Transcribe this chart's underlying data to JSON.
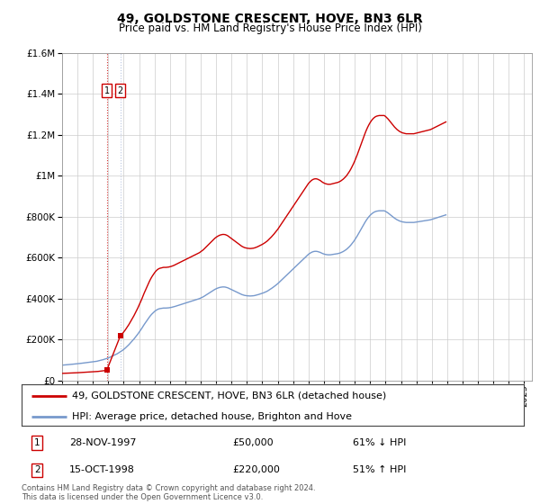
{
  "title": "49, GOLDSTONE CRESCENT, HOVE, BN3 6LR",
  "subtitle": "Price paid vs. HM Land Registry's House Price Index (HPI)",
  "transaction1_date": 1997.9,
  "transaction1_price": 50000,
  "transaction2_date": 1998.79,
  "transaction2_price": 220000,
  "property_line_color": "#cc0000",
  "hpi_line_color": "#7799cc",
  "vline1_color": "#cc0000",
  "vline2_color": "#aabbdd",
  "legend_property_label": "49, GOLDSTONE CRESCENT, HOVE, BN3 6LR (detached house)",
  "legend_hpi_label": "HPI: Average price, detached house, Brighton and Hove",
  "transaction1_text": "28-NOV-1997",
  "transaction1_price_text": "£50,000",
  "transaction1_hpi_text": "61% ↓ HPI",
  "transaction2_text": "15-OCT-1998",
  "transaction2_price_text": "£220,000",
  "transaction2_hpi_text": "51% ↑ HPI",
  "footer": "Contains HM Land Registry data © Crown copyright and database right 2024.\nThis data is licensed under the Open Government Licence v3.0.",
  "ylim_max": 1600000,
  "background_color": "#ffffff",
  "grid_color": "#cccccc",
  "hpi_monthly": [
    75000,
    75500,
    76000,
    76800,
    77200,
    77800,
    78500,
    79000,
    79800,
    80200,
    80800,
    81500,
    82000,
    82800,
    83500,
    84200,
    85000,
    85800,
    86500,
    87200,
    88000,
    88800,
    89500,
    90200,
    91000,
    92000,
    93000,
    94000,
    95500,
    97000,
    98500,
    100000,
    102000,
    104000,
    106000,
    108000,
    110000,
    113000,
    116000,
    119000,
    122000,
    125000,
    128000,
    131000,
    135000,
    139000,
    143000,
    147000,
    152000,
    157000,
    163000,
    169000,
    175000,
    182000,
    189000,
    196000,
    203000,
    211000,
    219000,
    227000,
    236000,
    245000,
    254000,
    264000,
    274000,
    283000,
    292000,
    301000,
    310000,
    318000,
    325000,
    331000,
    337000,
    342000,
    346000,
    349000,
    351000,
    352000,
    353000,
    354000,
    354000,
    354000,
    354500,
    355000,
    356000,
    357000,
    358500,
    360000,
    362000,
    364000,
    366000,
    368000,
    370000,
    372000,
    374000,
    376000,
    378000,
    380000,
    382000,
    384000,
    386000,
    388000,
    390000,
    392000,
    394000,
    396000,
    398000,
    400000,
    403000,
    406000,
    409000,
    413000,
    417000,
    421000,
    425000,
    429000,
    433000,
    437000,
    441000,
    445000,
    448000,
    451000,
    453000,
    455000,
    456000,
    457000,
    457000,
    456500,
    455000,
    453000,
    450000,
    447000,
    444000,
    441000,
    438000,
    435000,
    432000,
    429000,
    426000,
    423000,
    420000,
    418000,
    416000,
    415000,
    414000,
    413500,
    413000,
    413000,
    413500,
    414000,
    415000,
    416500,
    418000,
    420000,
    422000,
    424000,
    426000,
    428500,
    431000,
    434000,
    437000,
    441000,
    445000,
    449000,
    453500,
    458000,
    463000,
    468000,
    473000,
    479000,
    485000,
    491000,
    497000,
    503000,
    509000,
    515000,
    521000,
    527000,
    533000,
    539000,
    545000,
    551000,
    557000,
    563000,
    569000,
    575000,
    581000,
    587000,
    593000,
    599000,
    605000,
    611000,
    617000,
    621000,
    625000,
    628000,
    630000,
    631000,
    631000,
    630000,
    628000,
    626000,
    623000,
    620000,
    618000,
    616000,
    615000,
    614000,
    614000,
    614000,
    615000,
    616000,
    617000,
    618000,
    619000,
    620000,
    622000,
    624000,
    627000,
    630000,
    634000,
    638000,
    643000,
    649000,
    655000,
    662000,
    670000,
    678000,
    687000,
    697000,
    707000,
    718000,
    729000,
    740000,
    751000,
    762000,
    773000,
    783000,
    792000,
    800000,
    807000,
    813000,
    818000,
    822000,
    825000,
    827000,
    828000,
    829000,
    829000,
    829000,
    829000,
    829000,
    826000,
    822000,
    818000,
    813000,
    808000,
    803000,
    798000,
    793000,
    789000,
    785000,
    782000,
    779000,
    777000,
    775000,
    774000,
    773000,
    772000,
    772000,
    772000,
    772000,
    772000,
    772000,
    772000,
    773000,
    774000,
    775000,
    776000,
    777000,
    778000,
    779000,
    780000,
    781000,
    782000,
    783000,
    784000,
    785000,
    787000,
    789000,
    791000,
    793000,
    795000,
    797000,
    799000,
    801000,
    803000,
    805000,
    807000,
    809000
  ]
}
